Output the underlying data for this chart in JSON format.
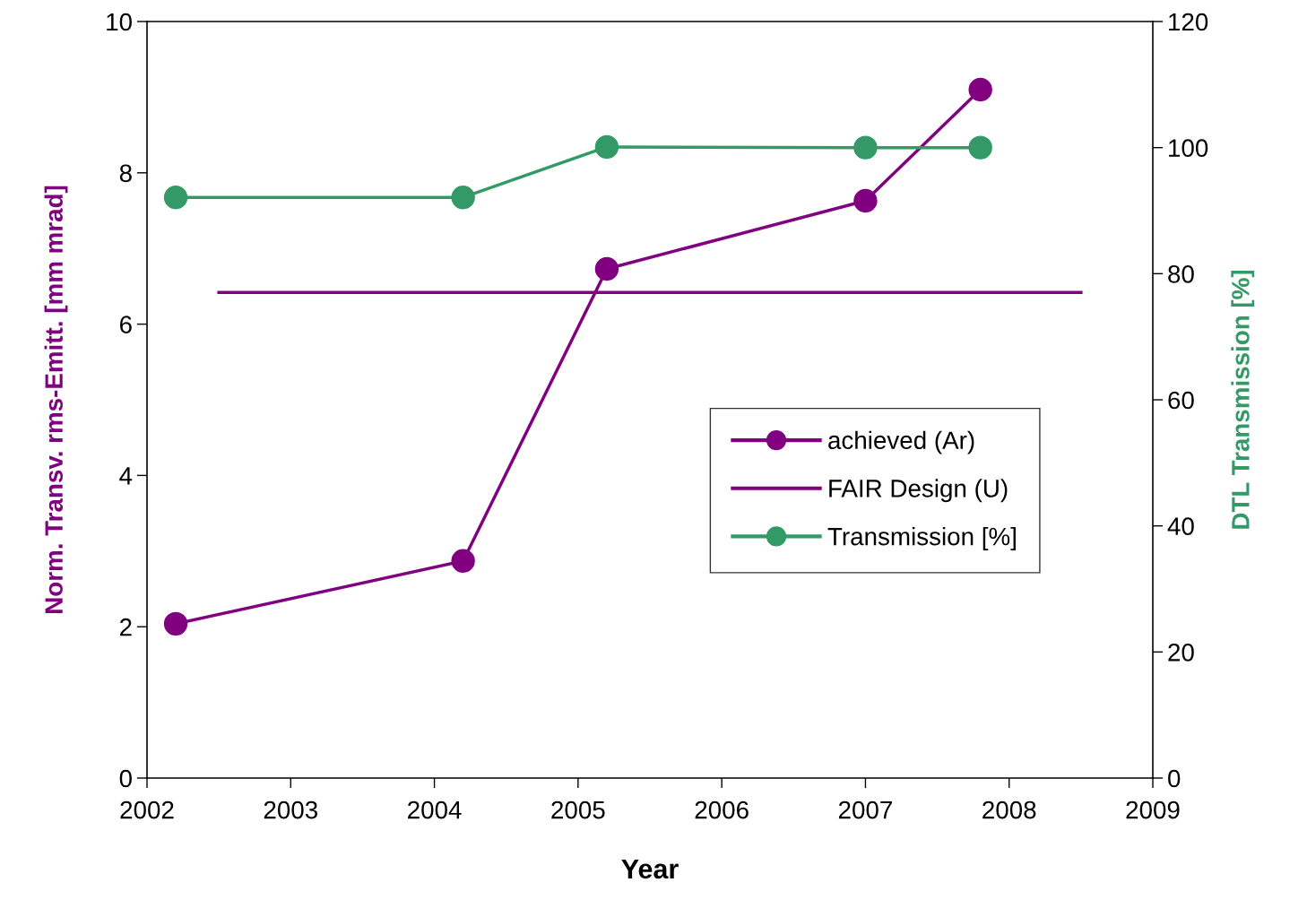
{
  "chart_data": {
    "type": "line",
    "xlabel": "Year",
    "ylabel": "Norm. Transv. rms-Emitt. [mm mrad]",
    "y2label": "DTL Transmission [%]",
    "xlim": [
      2002,
      2009
    ],
    "xticks": [
      2002,
      2003,
      2004,
      2005,
      2006,
      2007,
      2008,
      2009
    ],
    "ylim": [
      0,
      10
    ],
    "yticks": [
      0,
      2,
      4,
      6,
      8,
      10
    ],
    "y2lim": [
      0,
      120
    ],
    "y2ticks": [
      0,
      20,
      40,
      60,
      80,
      100,
      120
    ],
    "grid": false,
    "legend": "center right",
    "series": [
      {
        "name": "achieved (Ar)",
        "color": "#800080",
        "marker": "circle",
        "x": [
          2002.2,
          2004.2,
          2005.2,
          2007.0,
          2007.8
        ],
        "values": [
          2.04,
          2.87,
          6.73,
          7.63,
          9.1
        ]
      },
      {
        "name": "FAIR Design (U)",
        "color": "#800080",
        "marker": "none",
        "x": [
          2002.5,
          2008.5
        ],
        "values": [
          6.42,
          6.42
        ]
      },
      {
        "name": "Transmission [%]",
        "color": "#339966",
        "marker": "circle",
        "axis": "y2",
        "x": [
          2002.2,
          2004.2,
          2005.2,
          2007.0,
          2007.8
        ],
        "values": [
          92.1,
          92.1,
          100.1,
          100,
          100
        ]
      }
    ]
  }
}
